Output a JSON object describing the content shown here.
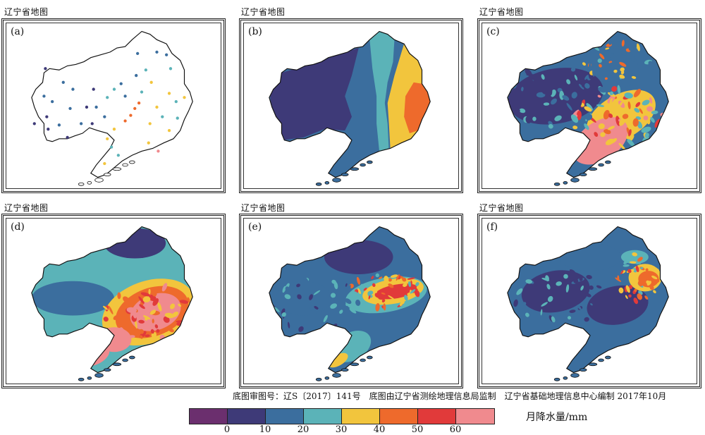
{
  "panels": [
    {
      "title": "辽宁省地图",
      "label": "(a)",
      "kind": "stations"
    },
    {
      "title": "辽宁省地图",
      "label": "(b)",
      "kind": "smooth"
    },
    {
      "title": "辽宁省地图",
      "label": "(c)",
      "kind": "noisy"
    },
    {
      "title": "辽宁省地图",
      "label": "(d)",
      "kind": "wet"
    },
    {
      "title": "辽宁省地图",
      "label": "(e)",
      "kind": "mid"
    },
    {
      "title": "辽宁省地图",
      "label": "(f)",
      "kind": "dry"
    }
  ],
  "credit": "底图审图号：辽S〔2017〕141号　底图由辽宁省测绘地理信息局监制　辽宁省基础地理信息中心编制 2017年10月",
  "legend": {
    "unit": "月降水量/mm",
    "ticks": [
      "0",
      "10",
      "20",
      "30",
      "40",
      "50",
      "60"
    ],
    "colors": [
      "#6b2f6e",
      "#3e3a78",
      "#3b6e9e",
      "#5bb3b8",
      "#f2c53d",
      "#ee6a2c",
      "#e13a3a",
      "#f08a8e"
    ]
  }
}
